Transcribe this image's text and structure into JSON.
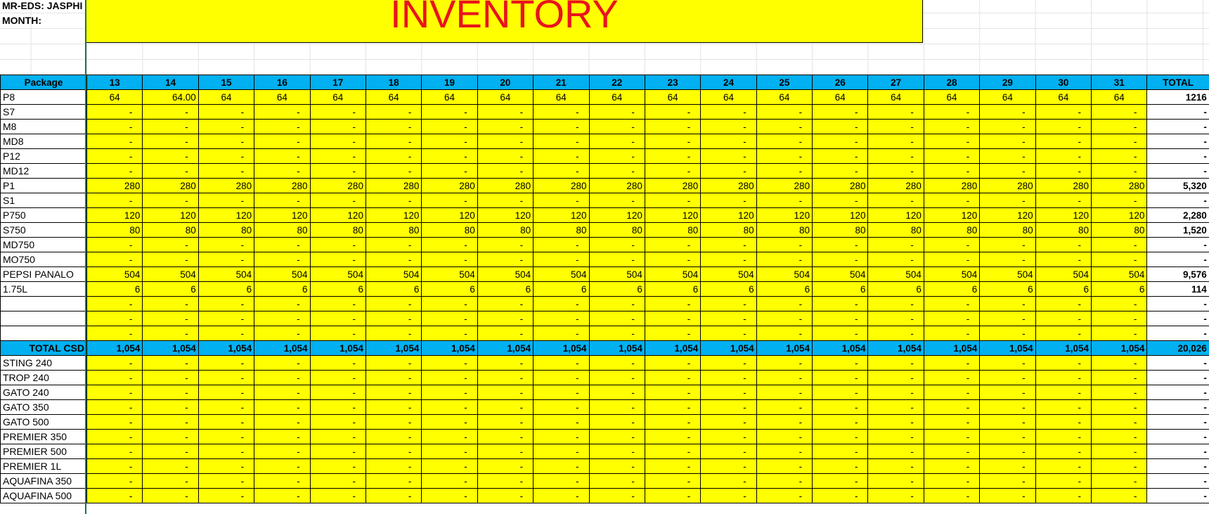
{
  "header": {
    "mr_eds": "MR-EDS: JASPHI",
    "month": "MONTH:",
    "title": "INVENTORY"
  },
  "table": {
    "columns": [
      "Package",
      "13",
      "14",
      "15",
      "16",
      "17",
      "18",
      "19",
      "20",
      "21",
      "22",
      "23",
      "24",
      "25",
      "26",
      "27",
      "28",
      "29",
      "30",
      "31",
      "TOTAL"
    ],
    "rows": [
      {
        "label": "P8",
        "cells": [
          "64",
          "64.00",
          "64",
          "64",
          "64",
          "64",
          "64",
          "64",
          "64",
          "64",
          "64",
          "64",
          "64",
          "64",
          "64",
          "64",
          "64",
          "64",
          "64"
        ],
        "total": "1216"
      },
      {
        "label": "S7",
        "cells": [
          "-",
          "-",
          "-",
          "-",
          "-",
          "-",
          "-",
          "-",
          "-",
          "-",
          "-",
          "-",
          "-",
          "-",
          "-",
          "-",
          "-",
          "-",
          "-"
        ],
        "total": "-"
      },
      {
        "label": "M8",
        "cells": [
          "-",
          "-",
          "-",
          "-",
          "-",
          "-",
          "-",
          "-",
          "-",
          "-",
          "-",
          "-",
          "-",
          "-",
          "-",
          "-",
          "-",
          "-",
          "-"
        ],
        "total": "-"
      },
      {
        "label": "MD8",
        "cells": [
          "-",
          "-",
          "-",
          "-",
          "-",
          "-",
          "-",
          "-",
          "-",
          "-",
          "-",
          "-",
          "-",
          "-",
          "-",
          "-",
          "-",
          "-",
          "-"
        ],
        "total": "-"
      },
      {
        "label": "P12",
        "cells": [
          "-",
          "-",
          "-",
          "-",
          "-",
          "-",
          "-",
          "-",
          "-",
          "-",
          "-",
          "-",
          "-",
          "-",
          "-",
          "-",
          "-",
          "-",
          "-"
        ],
        "total": "-"
      },
      {
        "label": "MD12",
        "cells": [
          "-",
          "-",
          "-",
          "-",
          "-",
          "-",
          "-",
          "-",
          "-",
          "-",
          "-",
          "-",
          "-",
          "-",
          "-",
          "-",
          "-",
          "-",
          "-"
        ],
        "total": "-"
      },
      {
        "label": "P1",
        "cells": [
          "280",
          "280",
          "280",
          "280",
          "280",
          "280",
          "280",
          "280",
          "280",
          "280",
          "280",
          "280",
          "280",
          "280",
          "280",
          "280",
          "280",
          "280",
          "280"
        ],
        "total": "5,320"
      },
      {
        "label": "S1",
        "cells": [
          "-",
          "-",
          "-",
          "-",
          "-",
          "-",
          "-",
          "-",
          "-",
          "-",
          "-",
          "-",
          "-",
          "-",
          "-",
          "-",
          "-",
          "-",
          "-"
        ],
        "total": "-"
      },
      {
        "label": "P750",
        "cells": [
          "120",
          "120",
          "120",
          "120",
          "120",
          "120",
          "120",
          "120",
          "120",
          "120",
          "120",
          "120",
          "120",
          "120",
          "120",
          "120",
          "120",
          "120",
          "120"
        ],
        "total": "2,280"
      },
      {
        "label": "S750",
        "cells": [
          "80",
          "80",
          "80",
          "80",
          "80",
          "80",
          "80",
          "80",
          "80",
          "80",
          "80",
          "80",
          "80",
          "80",
          "80",
          "80",
          "80",
          "80",
          "80"
        ],
        "total": "1,520"
      },
      {
        "label": "MD750",
        "cells": [
          "-",
          "-",
          "-",
          "-",
          "-",
          "-",
          "-",
          "-",
          "-",
          "-",
          "-",
          "-",
          "-",
          "-",
          "-",
          "-",
          "-",
          "-",
          "-"
        ],
        "total": "-"
      },
      {
        "label": "MO750",
        "cells": [
          "-",
          "-",
          "-",
          "-",
          "-",
          "-",
          "-",
          "-",
          "-",
          "-",
          "-",
          "-",
          "-",
          "-",
          "-",
          "-",
          "-",
          "-",
          "-"
        ],
        "total": "-"
      },
      {
        "label": "PEPSI PANALO",
        "cells": [
          "504",
          "504",
          "504",
          "504",
          "504",
          "504",
          "504",
          "504",
          "504",
          "504",
          "504",
          "504",
          "504",
          "504",
          "504",
          "504",
          "504",
          "504",
          "504"
        ],
        "total": "9,576"
      },
      {
        "label": "1.75L",
        "cells": [
          "6",
          "6",
          "6",
          "6",
          "6",
          "6",
          "6",
          "6",
          "6",
          "6",
          "6",
          "6",
          "6",
          "6",
          "6",
          "6",
          "6",
          "6",
          "6"
        ],
        "total": "114"
      },
      {
        "cells": [
          "-",
          "-",
          "-",
          "-",
          "-",
          "-",
          "-",
          "-",
          "-",
          "-",
          "-",
          "-",
          "-",
          "-",
          "-",
          "-",
          "-",
          "-",
          "-"
        ],
        "total": "-"
      },
      {
        "cells": [
          "-",
          "-",
          "-",
          "-",
          "-",
          "-",
          "-",
          "-",
          "-",
          "-",
          "-",
          "-",
          "-",
          "-",
          "-",
          "-",
          "-",
          "-",
          "-"
        ],
        "total": "-"
      },
      {
        "cells": [
          "-",
          "-",
          "-",
          "-",
          "-",
          "-",
          "-",
          "-",
          "-",
          "-",
          "-",
          "-",
          "-",
          "-",
          "-",
          "-",
          "-",
          "-",
          "-"
        ],
        "total": "-"
      },
      {
        "label": "TOTAL CSD",
        "cells": [
          "1,054",
          "1,054",
          "1,054",
          "1,054",
          "1,054",
          "1,054",
          "1,054",
          "1,054",
          "1,054",
          "1,054",
          "1,054",
          "1,054",
          "1,054",
          "1,054",
          "1,054",
          "1,054",
          "1,054",
          "1,054",
          "1,054"
        ],
        "total": "20,026",
        "summary": true
      },
      {
        "label": "STING 240",
        "cells": [
          "-",
          "-",
          "-",
          "-",
          "-",
          "-",
          "-",
          "-",
          "-",
          "-",
          "-",
          "-",
          "-",
          "-",
          "-",
          "-",
          "-",
          "-",
          "-"
        ],
        "total": "-"
      },
      {
        "label": "TROP 240",
        "cells": [
          "-",
          "-",
          "-",
          "-",
          "-",
          "-",
          "-",
          "-",
          "-",
          "-",
          "-",
          "-",
          "-",
          "-",
          "-",
          "-",
          "-",
          "-",
          "-"
        ],
        "total": "-"
      },
      {
        "label": "GATO 240",
        "cells": [
          "-",
          "-",
          "-",
          "-",
          "-",
          "-",
          "-",
          "-",
          "-",
          "-",
          "-",
          "-",
          "-",
          "-",
          "-",
          "-",
          "-",
          "-",
          "-"
        ],
        "total": "-"
      },
      {
        "label": "GATO 350",
        "cells": [
          "-",
          "-",
          "-",
          "-",
          "-",
          "-",
          "-",
          "-",
          "-",
          "-",
          "-",
          "-",
          "-",
          "-",
          "-",
          "-",
          "-",
          "-",
          "-"
        ],
        "total": "-"
      },
      {
        "label": "GATO 500",
        "cells": [
          "-",
          "-",
          "-",
          "-",
          "-",
          "-",
          "-",
          "-",
          "-",
          "-",
          "-",
          "-",
          "-",
          "-",
          "-",
          "-",
          "-",
          "-",
          "-"
        ],
        "total": "-"
      },
      {
        "label": "PREMIER 350",
        "cells": [
          "-",
          "-",
          "-",
          "-",
          "-",
          "-",
          "-",
          "-",
          "-",
          "-",
          "-",
          "-",
          "-",
          "-",
          "-",
          "-",
          "-",
          "-",
          "-"
        ],
        "total": "-"
      },
      {
        "label": "PREMIER 500",
        "cells": [
          "-",
          "-",
          "-",
          "-",
          "-",
          "-",
          "-",
          "-",
          "-",
          "-",
          "-",
          "-",
          "-",
          "-",
          "-",
          "-",
          "-",
          "-",
          "-"
        ],
        "total": "-"
      },
      {
        "label": "PREMIER 1L",
        "cells": [
          "-",
          "-",
          "-",
          "-",
          "-",
          "-",
          "-",
          "-",
          "-",
          "-",
          "-",
          "-",
          "-",
          "-",
          "-",
          "-",
          "-",
          "-",
          "-"
        ],
        "total": "-"
      },
      {
        "label": "AQUAFINA 350",
        "cells": [
          "-",
          "-",
          "-",
          "-",
          "-",
          "-",
          "-",
          "-",
          "-",
          "-",
          "-",
          "-",
          "-",
          "-",
          "-",
          "-",
          "-",
          "-",
          "-"
        ],
        "total": "-"
      },
      {
        "label": "AQUAFINA 500",
        "cells": [
          "-",
          "-",
          "-",
          "-",
          "-",
          "-",
          "-",
          "-",
          "-",
          "-",
          "-",
          "-",
          "-",
          "-",
          "-",
          "-",
          "-",
          "-",
          "-"
        ],
        "total": "-"
      }
    ]
  }
}
